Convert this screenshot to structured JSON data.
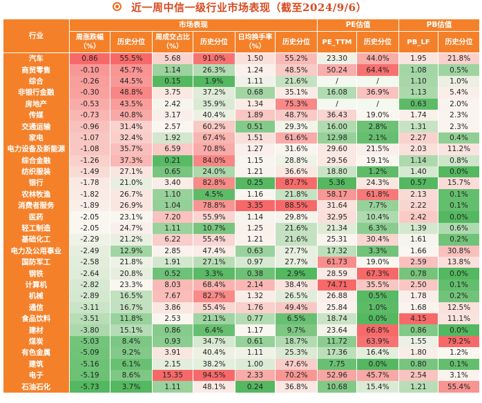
{
  "title": "近一周中信一级行业市场表现（截至2024/9/6）",
  "colors": {
    "header_orange": "#f4812a",
    "title_red": "#d94a1e"
  },
  "headers": {
    "industry": "行业",
    "groups": [
      "市场表现",
      "PE估值",
      "PB估值"
    ],
    "columns": [
      "周涨跌幅（%）",
      "历史分位",
      "周成交占比（%）",
      "历史分位",
      "日均换手率（%）",
      "历史分位",
      "PE_TTM",
      "历史分位",
      "PB_LF",
      "历史分位"
    ]
  },
  "rows": [
    [
      "汽车",
      "0.86",
      "55.5%",
      "5.68",
      "91.0%",
      "1.50",
      "55.2%",
      "23.30",
      "44.0%",
      "1.95",
      "21.8%"
    ],
    [
      "商贸零售",
      "-0.10",
      "45.7%",
      "1.14",
      "26.3%",
      "1.24",
      "48.5%",
      "50.24",
      "64.4%",
      "1.08",
      "0.5%"
    ],
    [
      "综合",
      "-0.26",
      "44.5%",
      "0.15",
      "1.9%",
      "1.11",
      "21.6%",
      "/",
      "/",
      "1.10",
      "1.0%"
    ],
    [
      "非银行金融",
      "-0.30",
      "48.8%",
      "3.75",
      "37.2%",
      "0.68",
      "35.1%",
      "16.08",
      "36.9%",
      "1.13",
      "5.4%"
    ],
    [
      "房地产",
      "-0.53",
      "43.5%",
      "2.42",
      "35.9%",
      "1.34",
      "75.3%",
      "/",
      "/",
      "0.63",
      "2.0%"
    ],
    [
      "传媒",
      "-0.73",
      "40.8%",
      "3.17",
      "40.4%",
      "1.89",
      "48.7%",
      "36.43",
      "19.0%",
      "1.74",
      "2.3%"
    ],
    [
      "交通运输",
      "-0.96",
      "31.4%",
      "2.57",
      "60.2%",
      "0.51",
      "29.3%",
      "16.00",
      "2.8%",
      "1.31",
      "2.3%"
    ],
    [
      "家电",
      "-1.07",
      "32.4%",
      "1.92",
      "67.4%",
      "1.51",
      "61.6%",
      "12.98",
      "2.1%",
      "2.27",
      "0.4%"
    ],
    [
      "电力设备及新能源",
      "-1.08",
      "35.7%",
      "6.59",
      "70.8%",
      "1.27",
      "31.6%",
      "29.60",
      "21.5%",
      "2.03",
      "11.2%"
    ],
    [
      "综合金融",
      "-1.26",
      "37.3%",
      "0.21",
      "84.0%",
      "1.15",
      "28.8%",
      "29.56",
      "19.1%",
      "1.14",
      "0.8%"
    ],
    [
      "纺织服装",
      "-1.49",
      "27.1%",
      "0.65",
      "24.0%",
      "1.21",
      "36.6%",
      "18.80",
      "1.2%",
      "1.40",
      "0.0%"
    ],
    [
      "银行",
      "-1.78",
      "21.0%",
      "3.40",
      "82.8%",
      "0.25",
      "87.7%",
      "5.36",
      "24.3%",
      "0.57",
      "15.7%"
    ],
    [
      "农林牧渔",
      "-1.82",
      "26.7%",
      "1.10",
      "4.5%",
      "1.16",
      "21.8%",
      "58.17",
      "61.8%",
      "2.13",
      "0.1%"
    ],
    [
      "消费者服务",
      "-1.89",
      "26.9%",
      "1.04",
      "78.8%",
      "3.35",
      "88.5%",
      "31.64",
      "7.7%",
      "2.22",
      "0.1%"
    ],
    [
      "医药",
      "-2.05",
      "23.1%",
      "7.20",
      "55.9%",
      "1.14",
      "29.8%",
      "32.95",
      "10.4%",
      "2.42",
      "0.0%"
    ],
    [
      "轻工制造",
      "-2.05",
      "24.7%",
      "1.11",
      "10.7%",
      "1.25",
      "21.6%",
      "21.34",
      "6.3%",
      "1.39",
      "0.6%"
    ],
    [
      "基础化工",
      "-2.29",
      "21.2%",
      "6.22",
      "55.4%",
      "1.21",
      "21.6%",
      "25.31",
      "30.4%",
      "1.61",
      "0.2%"
    ],
    [
      "电力及公用事业",
      "-2.49",
      "12.9%",
      "2.85",
      "47.4%",
      "0.63",
      "27.7%",
      "17.32",
      "3.3%",
      "1.66",
      "30.8%"
    ],
    [
      "国防军工",
      "-2.58",
      "21.8%",
      "1.91",
      "27.1%",
      "0.97",
      "27.7%",
      "61.73",
      "19.0%",
      "2.59",
      "13.8%"
    ],
    [
      "钢铁",
      "-2.64",
      "20.8%",
      "0.52",
      "3.3%",
      "0.38",
      "2.9%",
      "28.59",
      "67.3%",
      "0.78",
      "0.0%"
    ],
    [
      "计算机",
      "-2.82",
      "23.3%",
      "8.03",
      "68.4%",
      "2.14",
      "38.4%",
      "74.71",
      "35.5%",
      "2.50",
      "0.1%"
    ],
    [
      "机械",
      "-2.89",
      "16.5%",
      "7.67",
      "82.7%",
      "1.32",
      "26.5%",
      "26.88",
      "0.5%",
      "1.78",
      "0.2%"
    ],
    [
      "通信",
      "-3.11",
      "16.7%",
      "3.86",
      "55.4%",
      "1.76",
      "49.4%",
      "25.84",
      "1.0%",
      "1.68",
      "12.5%"
    ],
    [
      "食品饮料",
      "-3.51",
      "11.8%",
      "2.53",
      "21.1%",
      "0.77",
      "6.5%",
      "18.74",
      "0.0%",
      "4.15",
      "11.1%"
    ],
    [
      "建材",
      "-3.80",
      "15.1%",
      "0.86",
      "6.4%",
      "1.17",
      "9.7%",
      "23.64",
      "66.8%",
      "0.86",
      "0.0%"
    ],
    [
      "煤炭",
      "-5.03",
      "8.4%",
      "0.93",
      "34.7%",
      "0.61",
      "18.7%",
      "11.72",
      "63.9%",
      "1.55",
      "79.2%"
    ],
    [
      "有色金属",
      "-5.09",
      "9.2%",
      "3.91",
      "40.4%",
      "1.11",
      "25.3%",
      "17.36",
      "16.4%",
      "1.80",
      "1.2%"
    ],
    [
      "建筑",
      "-5.16",
      "6.1%",
      "2.15",
      "38.2%",
      "1.00",
      "47.6%",
      "7.75",
      "0.0%",
      "0.80",
      "0.1%"
    ],
    [
      "电子",
      "-5.19",
      "8.6%",
      "15.35",
      "94.5%",
      "2.33",
      "70.2%",
      "52.96",
      "45.7%",
      "2.54",
      "3.1%"
    ],
    [
      "石油石化",
      "-5.73",
      "3.7%",
      "1.11",
      "48.1%",
      "0.24",
      "36.8%",
      "10.68",
      "15.4%",
      "1.21",
      "55.4%"
    ]
  ]
}
